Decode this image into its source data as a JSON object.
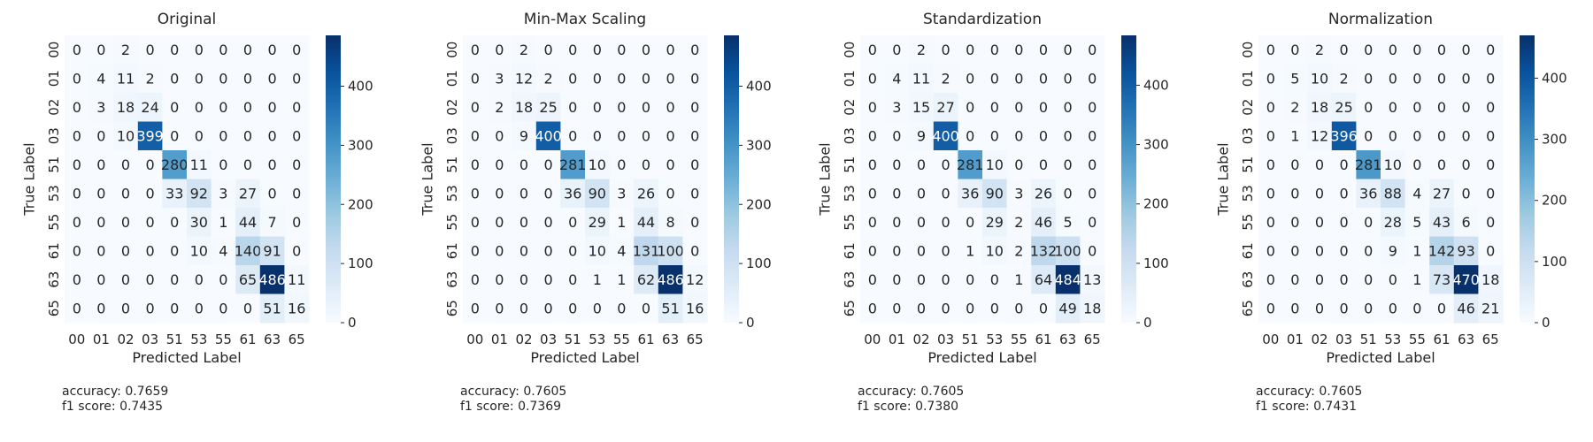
{
  "chart_data": [
    {
      "type": "heatmap",
      "title": "Original",
      "xlabel": "Predicted Label",
      "ylabel": "True Label",
      "x_categories": [
        "00",
        "01",
        "02",
        "03",
        "51",
        "53",
        "55",
        "61",
        "63",
        "65"
      ],
      "y_categories": [
        "00",
        "01",
        "02",
        "03",
        "51",
        "53",
        "55",
        "61",
        "63",
        "65"
      ],
      "values": [
        [
          0,
          0,
          2,
          0,
          0,
          0,
          0,
          0,
          0,
          0
        ],
        [
          0,
          4,
          11,
          2,
          0,
          0,
          0,
          0,
          0,
          0
        ],
        [
          0,
          3,
          18,
          24,
          0,
          0,
          0,
          0,
          0,
          0
        ],
        [
          0,
          0,
          10,
          399,
          0,
          0,
          0,
          0,
          0,
          0
        ],
        [
          0,
          0,
          0,
          0,
          280,
          11,
          0,
          0,
          0,
          0
        ],
        [
          0,
          0,
          0,
          0,
          33,
          92,
          3,
          27,
          0,
          0
        ],
        [
          0,
          0,
          0,
          0,
          0,
          30,
          1,
          44,
          7,
          0
        ],
        [
          0,
          0,
          0,
          0,
          0,
          10,
          4,
          140,
          91,
          0
        ],
        [
          0,
          0,
          0,
          0,
          0,
          0,
          0,
          65,
          486,
          11
        ],
        [
          0,
          0,
          0,
          0,
          0,
          0,
          0,
          0,
          51,
          16
        ]
      ],
      "colorbar": {
        "min": 0,
        "max": 486,
        "ticks": [
          0,
          100,
          200,
          300,
          400
        ]
      },
      "metrics": [
        "accuracy: 0.7659",
        "f1 score: 0.7435"
      ]
    },
    {
      "type": "heatmap",
      "title": "Min-Max Scaling",
      "xlabel": "Predicted Label",
      "ylabel": "True Label",
      "x_categories": [
        "00",
        "01",
        "02",
        "03",
        "51",
        "53",
        "55",
        "61",
        "63",
        "65"
      ],
      "y_categories": [
        "00",
        "01",
        "02",
        "03",
        "51",
        "53",
        "55",
        "61",
        "63",
        "65"
      ],
      "values": [
        [
          0,
          0,
          2,
          0,
          0,
          0,
          0,
          0,
          0,
          0
        ],
        [
          0,
          3,
          12,
          2,
          0,
          0,
          0,
          0,
          0,
          0
        ],
        [
          0,
          2,
          18,
          25,
          0,
          0,
          0,
          0,
          0,
          0
        ],
        [
          0,
          0,
          9,
          400,
          0,
          0,
          0,
          0,
          0,
          0
        ],
        [
          0,
          0,
          0,
          0,
          281,
          10,
          0,
          0,
          0,
          0
        ],
        [
          0,
          0,
          0,
          0,
          36,
          90,
          3,
          26,
          0,
          0
        ],
        [
          0,
          0,
          0,
          0,
          0,
          29,
          1,
          44,
          8,
          0
        ],
        [
          0,
          0,
          0,
          0,
          0,
          10,
          4,
          131,
          100,
          0
        ],
        [
          0,
          0,
          0,
          0,
          0,
          1,
          1,
          62,
          486,
          12
        ],
        [
          0,
          0,
          0,
          0,
          0,
          0,
          0,
          0,
          51,
          16
        ]
      ],
      "colorbar": {
        "min": 0,
        "max": 486,
        "ticks": [
          0,
          100,
          200,
          300,
          400
        ]
      },
      "metrics": [
        "accuracy: 0.7605",
        "f1 score: 0.7369"
      ]
    },
    {
      "type": "heatmap",
      "title": "Standardization",
      "xlabel": "Predicted Label",
      "ylabel": "True Label",
      "x_categories": [
        "00",
        "01",
        "02",
        "03",
        "51",
        "53",
        "55",
        "61",
        "63",
        "65"
      ],
      "y_categories": [
        "00",
        "01",
        "02",
        "03",
        "51",
        "53",
        "55",
        "61",
        "63",
        "65"
      ],
      "values": [
        [
          0,
          0,
          2,
          0,
          0,
          0,
          0,
          0,
          0,
          0
        ],
        [
          0,
          4,
          11,
          2,
          0,
          0,
          0,
          0,
          0,
          0
        ],
        [
          0,
          3,
          15,
          27,
          0,
          0,
          0,
          0,
          0,
          0
        ],
        [
          0,
          0,
          9,
          400,
          0,
          0,
          0,
          0,
          0,
          0
        ],
        [
          0,
          0,
          0,
          0,
          281,
          10,
          0,
          0,
          0,
          0
        ],
        [
          0,
          0,
          0,
          0,
          36,
          90,
          3,
          26,
          0,
          0
        ],
        [
          0,
          0,
          0,
          0,
          0,
          29,
          2,
          46,
          5,
          0
        ],
        [
          0,
          0,
          0,
          0,
          1,
          10,
          2,
          132,
          100,
          0
        ],
        [
          0,
          0,
          0,
          0,
          0,
          0,
          1,
          64,
          484,
          13
        ],
        [
          0,
          0,
          0,
          0,
          0,
          0,
          0,
          0,
          49,
          18
        ]
      ],
      "colorbar": {
        "min": 0,
        "max": 484,
        "ticks": [
          0,
          100,
          200,
          300,
          400
        ]
      },
      "metrics": [
        "accuracy: 0.7605",
        "f1 score: 0.7380"
      ]
    },
    {
      "type": "heatmap",
      "title": "Normalization",
      "xlabel": "Predicted Label",
      "ylabel": "True Label",
      "x_categories": [
        "00",
        "01",
        "02",
        "03",
        "51",
        "53",
        "55",
        "61",
        "63",
        "65"
      ],
      "y_categories": [
        "00",
        "01",
        "02",
        "03",
        "51",
        "53",
        "55",
        "61",
        "63",
        "65"
      ],
      "values": [
        [
          0,
          0,
          2,
          0,
          0,
          0,
          0,
          0,
          0,
          0
        ],
        [
          0,
          5,
          10,
          2,
          0,
          0,
          0,
          0,
          0,
          0
        ],
        [
          0,
          2,
          18,
          25,
          0,
          0,
          0,
          0,
          0,
          0
        ],
        [
          0,
          1,
          12,
          396,
          0,
          0,
          0,
          0,
          0,
          0
        ],
        [
          0,
          0,
          0,
          0,
          281,
          10,
          0,
          0,
          0,
          0
        ],
        [
          0,
          0,
          0,
          0,
          36,
          88,
          4,
          27,
          0,
          0
        ],
        [
          0,
          0,
          0,
          0,
          0,
          28,
          5,
          43,
          6,
          0
        ],
        [
          0,
          0,
          0,
          0,
          0,
          9,
          1,
          142,
          93,
          0
        ],
        [
          0,
          0,
          0,
          0,
          0,
          0,
          1,
          73,
          470,
          18
        ],
        [
          0,
          0,
          0,
          0,
          0,
          0,
          0,
          0,
          46,
          21
        ]
      ],
      "colorbar": {
        "min": 0,
        "max": 470,
        "ticks": [
          0,
          100,
          200,
          300,
          400
        ]
      },
      "metrics": [
        "accuracy: 0.7605",
        "f1 score: 0.7431"
      ]
    }
  ]
}
